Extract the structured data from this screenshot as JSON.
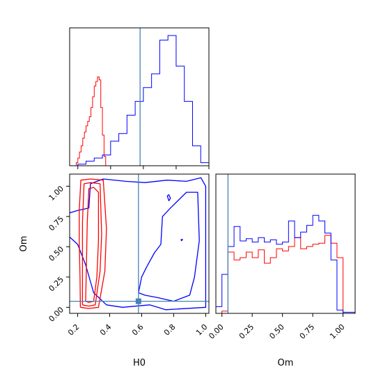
{
  "chart_data": {
    "type": "corner",
    "truth": {
      "H0": 0.58,
      "Om": 0.05
    },
    "series_colors": {
      "red": "#ff0000",
      "blue": "#0000ff",
      "truth": "#4682b4"
    },
    "panels": {
      "h0_hist": {
        "type": "step",
        "xlim": [
          0.15,
          1.0
        ],
        "series": [
          {
            "color": "#ff0000",
            "bin_edges": [
              0.19,
              0.2,
              0.21,
              0.22,
              0.23,
              0.24,
              0.25,
              0.26,
              0.27,
              0.28,
              0.29,
              0.3,
              0.31,
              0.32,
              0.33,
              0.34,
              0.35,
              0.36,
              0.37
            ],
            "counts": [
              0.02,
              0.05,
              0.09,
              0.13,
              0.18,
              0.22,
              0.26,
              0.29,
              0.32,
              0.38,
              0.45,
              0.52,
              0.55,
              0.58,
              0.56,
              0.38,
              0.2,
              0.06
            ]
          },
          {
            "color": "#0000ff",
            "bin_edges": [
              0.15,
              0.2,
              0.25,
              0.3,
              0.35,
              0.4,
              0.45,
              0.5,
              0.55,
              0.6,
              0.65,
              0.7,
              0.75,
              0.8,
              0.85,
              0.9,
              0.95,
              1.0
            ],
            "counts": [
              0.0,
              0.01,
              0.03,
              0.05,
              0.07,
              0.16,
              0.21,
              0.33,
              0.42,
              0.51,
              0.6,
              0.82,
              0.85,
              0.65,
              0.42,
              0.13,
              0.02
            ]
          }
        ]
      },
      "om_hist": {
        "type": "step",
        "xlim": [
          -0.05,
          1.1
        ],
        "xticks": [
          0.0,
          0.25,
          0.5,
          0.75,
          1.0
        ],
        "xtick_labels": [
          "0.00",
          "0.25",
          "0.50",
          "0.75",
          "1.00"
        ],
        "xlabel": "Om",
        "series": [
          {
            "color": "#ff0000",
            "bin_edges": [
              0.0,
              0.05,
              0.1,
              0.15,
              0.2,
              0.25,
              0.3,
              0.35,
              0.4,
              0.45,
              0.5,
              0.55,
              0.6,
              0.65,
              0.7,
              0.75,
              0.8,
              0.85,
              0.9,
              0.95,
              1.0
            ],
            "counts": [
              0.02,
              0.55,
              0.48,
              0.5,
              0.55,
              0.5,
              0.57,
              0.45,
              0.5,
              0.58,
              0.56,
              0.6,
              0.68,
              0.58,
              0.6,
              0.62,
              0.63,
              0.7,
              0.63,
              0.5
            ]
          },
          {
            "color": "#0000ff",
            "bin_edges": [
              -0.05,
              0.0,
              0.05,
              0.1,
              0.15,
              0.2,
              0.25,
              0.3,
              0.35,
              0.4,
              0.45,
              0.5,
              0.55,
              0.6,
              0.65,
              0.7,
              0.75,
              0.8,
              0.85,
              0.9,
              0.95,
              1.0,
              1.05,
              1.1
            ],
            "counts": [
              0.06,
              0.35,
              0.6,
              0.78,
              0.65,
              0.67,
              0.64,
              0.68,
              0.64,
              0.66,
              0.62,
              0.64,
              0.83,
              0.68,
              0.73,
              0.79,
              0.88,
              0.83,
              0.72,
              0.48,
              0.03,
              0.01,
              0.01
            ]
          }
        ]
      },
      "joint": {
        "type": "contour",
        "xlim": [
          0.15,
          1.02
        ],
        "ylim": [
          -0.05,
          1.1
        ],
        "xticks": [
          0.2,
          0.4,
          0.6,
          0.8,
          1.0
        ],
        "xtick_labels": [
          "0.2",
          "0.4",
          "0.6",
          "0.8",
          "1.0"
        ],
        "yticks": [
          0.0,
          0.25,
          0.5,
          0.75,
          1.0
        ],
        "ytick_labels": [
          "0.00",
          "0.25",
          "0.50",
          "0.75",
          "1.00"
        ],
        "xlabel": "H0",
        "ylabel": "Om",
        "red_contours": [
          [
            [
              0.217,
              0.0
            ],
            [
              0.215,
              0.25
            ],
            [
              0.21,
              0.55
            ],
            [
              0.21,
              0.8
            ],
            [
              0.22,
              1.05
            ],
            [
              0.28,
              1.06
            ],
            [
              0.36,
              1.05
            ],
            [
              0.38,
              0.65
            ],
            [
              0.37,
              0.3
            ],
            [
              0.33,
              0.0
            ],
            [
              0.27,
              -0.01
            ],
            [
              0.217,
              0.0
            ]
          ],
          [
            [
              0.23,
              0.02
            ],
            [
              0.23,
              0.3
            ],
            [
              0.23,
              0.7
            ],
            [
              0.24,
              1.02
            ],
            [
              0.28,
              1.03
            ],
            [
              0.34,
              1.02
            ],
            [
              0.35,
              0.6
            ],
            [
              0.34,
              0.3
            ],
            [
              0.31,
              0.02
            ],
            [
              0.27,
              0.01
            ],
            [
              0.23,
              0.02
            ]
          ],
          [
            [
              0.25,
              0.05
            ],
            [
              0.255,
              0.35
            ],
            [
              0.26,
              0.7
            ],
            [
              0.27,
              0.98
            ],
            [
              0.3,
              0.99
            ],
            [
              0.33,
              0.95
            ],
            [
              0.33,
              0.55
            ],
            [
              0.32,
              0.25
            ],
            [
              0.3,
              0.05
            ],
            [
              0.27,
              0.04
            ],
            [
              0.25,
              0.05
            ]
          ]
        ],
        "blue_contours": [
          [
            [
              0.15,
              0.78
            ],
            [
              0.2,
              0.8
            ],
            [
              0.27,
              0.82
            ],
            [
              0.28,
              1.02
            ],
            [
              0.36,
              1.06
            ],
            [
              0.5,
              1.04
            ],
            [
              0.62,
              1.03
            ],
            [
              0.76,
              1.05
            ],
            [
              0.88,
              1.04
            ],
            [
              0.97,
              1.07
            ],
            [
              1.0,
              1.0
            ],
            [
              1.0,
              0.0
            ],
            [
              0.75,
              -0.02
            ],
            [
              0.65,
              0.02
            ],
            [
              0.48,
              0.0
            ],
            [
              0.38,
              0.02
            ],
            [
              0.3,
              0.12
            ],
            [
              0.25,
              0.35
            ],
            [
              0.2,
              0.52
            ],
            [
              0.15,
              0.58
            ]
          ],
          [
            [
              0.58,
              0.12
            ],
            [
              0.6,
              0.25
            ],
            [
              0.63,
              0.33
            ],
            [
              0.68,
              0.45
            ],
            [
              0.72,
              0.52
            ],
            [
              0.73,
              0.75
            ],
            [
              0.78,
              0.82
            ],
            [
              0.88,
              0.95
            ],
            [
              0.95,
              0.95
            ],
            [
              0.96,
              0.55
            ],
            [
              0.93,
              0.25
            ],
            [
              0.9,
              0.1
            ],
            [
              0.8,
              0.05
            ],
            [
              0.7,
              0.08
            ],
            [
              0.62,
              0.1
            ],
            [
              0.58,
              0.12
            ]
          ],
          [
            [
              0.76,
              0.92
            ],
            [
              0.77,
              0.93
            ],
            [
              0.78,
              0.9
            ],
            [
              0.77,
              0.88
            ],
            [
              0.76,
              0.92
            ]
          ],
          [
            [
              0.845,
              0.56
            ],
            [
              0.855,
              0.56
            ],
            [
              0.85,
              0.55
            ],
            [
              0.845,
              0.56
            ]
          ]
        ]
      }
    }
  }
}
